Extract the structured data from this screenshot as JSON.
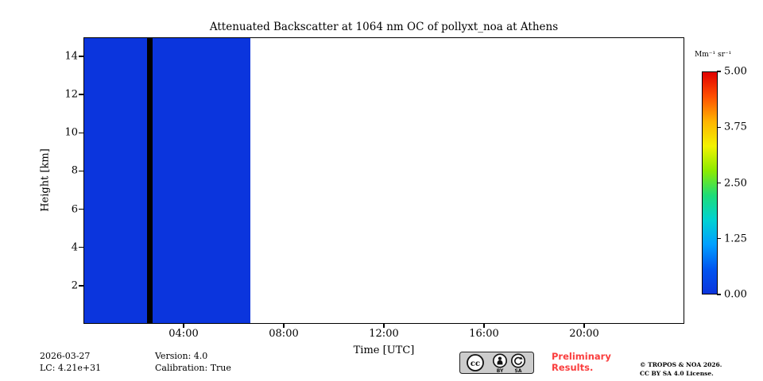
{
  "chart_data": {
    "type": "heatmap",
    "title": "Attenuated Backscatter at 1064 nm OC of pollyxt_noa at Athens",
    "xlabel": "Time [UTC]",
    "ylabel": "Height [km]",
    "xlim_hours": [
      0,
      24
    ],
    "ylim_km": [
      0,
      15
    ],
    "x_ticks": [
      "04:00",
      "08:00",
      "12:00",
      "16:00",
      "20:00"
    ],
    "x_tick_hours": [
      4,
      8,
      12,
      16,
      20
    ],
    "y_ticks": [
      2,
      4,
      6,
      8,
      10,
      12,
      14
    ],
    "grid": false,
    "data_coverage": {
      "description": "uniform near-zero attenuated backscatter over full 0-15 km height range",
      "start_hour": 0.0,
      "end_hour": 6.65,
      "value_mm_sr": 0.0,
      "color": "#0b35dd"
    },
    "data_gap": {
      "description": "black vertical no-data stripe",
      "start_hour": 2.5,
      "end_hour": 2.73,
      "color": "#000000"
    },
    "colorbar": {
      "label": "Mm⁻¹ sr⁻¹",
      "min": 0.0,
      "max": 5.0,
      "ticks": [
        "5.00",
        "3.75",
        "2.50",
        "1.25",
        "0.00"
      ],
      "colormap": "jet",
      "gradient_top_to_bottom": [
        "#e00000",
        "#ff5000",
        "#ffb400",
        "#f2f200",
        "#8ceb00",
        "#1edc78",
        "#00d2d2",
        "#009fff",
        "#0055f0",
        "#0b35dd"
      ]
    }
  },
  "footer": {
    "date": "2026-03-27",
    "lc": "LC: 4.21e+31",
    "version": "Version: 4.0",
    "calibration": "Calibration: True",
    "preliminary_line1": "Preliminary",
    "preliminary_line2": "Results.",
    "preliminary_color": "#fa3e3e",
    "copyright_line1": "© TROPOS & NOA 2026.",
    "copyright_line2": "CC BY SA 4.0 License.",
    "badge": {
      "cc": "cc",
      "by": "BY",
      "sa": "SA"
    }
  }
}
